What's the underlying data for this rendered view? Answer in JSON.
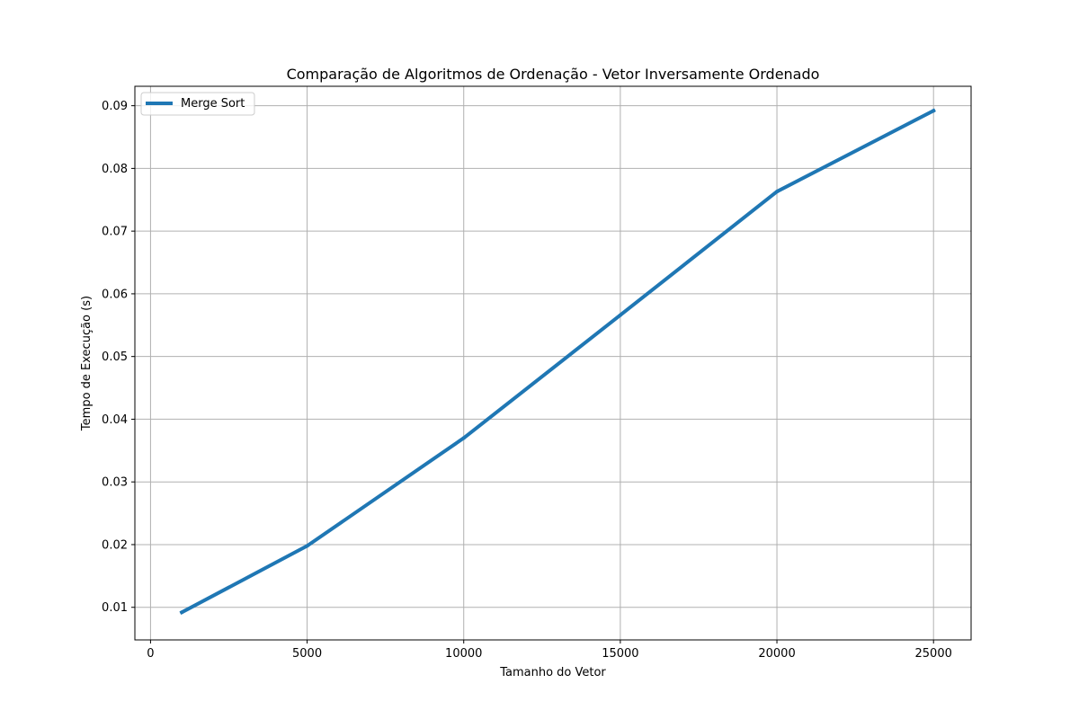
{
  "chart_data": {
    "type": "line",
    "title": "Comparação de Algoritmos de Ordenação - Vetor Inversamente Ordenado",
    "xlabel": "Tamanho do Vetor",
    "ylabel": "Tempo de Execução (s)",
    "xlim": [
      -500,
      26200
    ],
    "ylim": [
      0.0048,
      0.0931
    ],
    "xticks": [
      0,
      5000,
      10000,
      15000,
      20000,
      25000
    ],
    "xtick_labels": [
      "0",
      "5000",
      "10000",
      "15000",
      "20000",
      "25000"
    ],
    "yticks": [
      0.01,
      0.02,
      0.03,
      0.04,
      0.05,
      0.06,
      0.07,
      0.08,
      0.09
    ],
    "ytick_labels": [
      "0.01",
      "0.02",
      "0.03",
      "0.04",
      "0.05",
      "0.06",
      "0.07",
      "0.08",
      "0.09"
    ],
    "grid": true,
    "legend": "top-left",
    "series": [
      {
        "name": "Merge Sort",
        "color": "#1f77b4",
        "x": [
          1000,
          5000,
          10000,
          15000,
          20000,
          25000
        ],
        "y": [
          0.0092,
          0.0198,
          0.037,
          0.0566,
          0.0763,
          0.0892
        ]
      }
    ]
  }
}
